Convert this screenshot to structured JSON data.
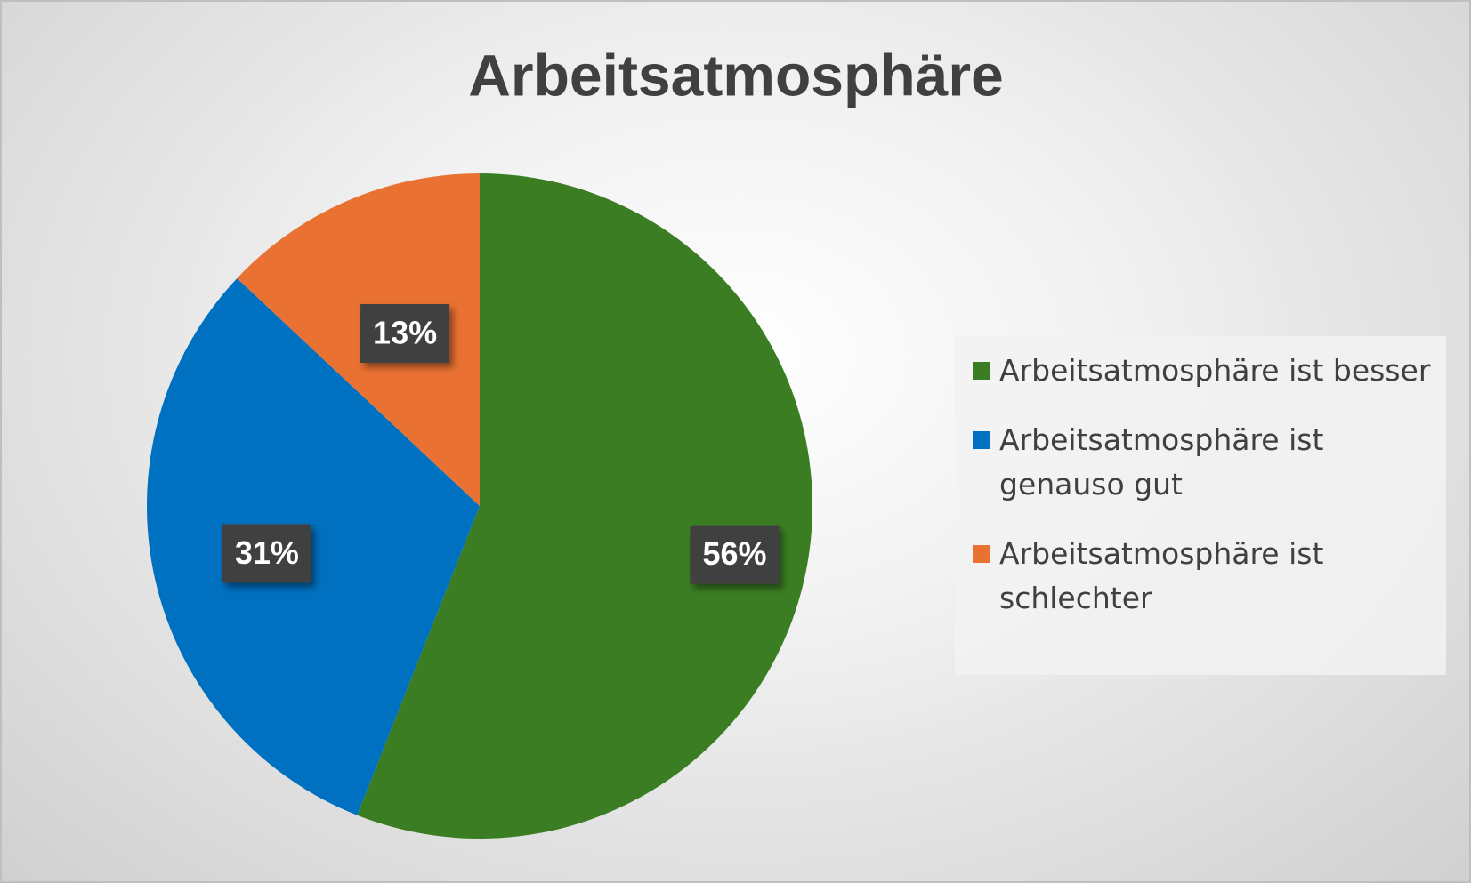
{
  "chart_data": {
    "type": "pie",
    "title": "Arbeitsatmosphäre",
    "categories": [
      "Arbeitsatmosphäre ist besser",
      "Arbeitsatmosphäre ist genauso gut",
      "Arbeitsatmosphäre ist schlechter"
    ],
    "values": [
      56,
      31,
      13
    ],
    "value_labels": [
      "56%",
      "31%",
      "13%"
    ],
    "colors": [
      "#3b7d23",
      "#0070c0",
      "#e97132"
    ],
    "legend": "right"
  }
}
